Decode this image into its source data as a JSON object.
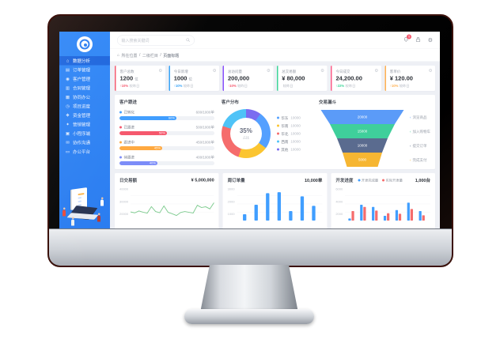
{
  "topbar": {
    "search_placeholder": "输入搜索关键词",
    "bell_badge": "5",
    "gear_glyph": "⚙"
  },
  "breadcrumb": {
    "home_glyph": "⌂",
    "home": "所在位置",
    "divider1": "/",
    "section": "二级栏目",
    "divider2": "/",
    "page": "页面标题"
  },
  "sidebar": {
    "items": [
      {
        "glyph": "⌂",
        "label": "数据分析"
      },
      {
        "glyph": "▤",
        "label": "订单管理"
      },
      {
        "glyph": "◉",
        "label": "客户管理"
      },
      {
        "glyph": "▥",
        "label": "合同管理"
      },
      {
        "glyph": "▦",
        "label": "协同办公"
      },
      {
        "glyph": "◷",
        "label": "项目进度"
      },
      {
        "glyph": "❖",
        "label": "资金管理"
      },
      {
        "glyph": "✦",
        "label": "营销管理"
      },
      {
        "glyph": "▣",
        "label": "小程序端"
      },
      {
        "glyph": "✉",
        "label": "协作沟通"
      },
      {
        "glyph": "▭",
        "label": "办公平台"
      }
    ]
  },
  "cards": [
    {
      "accent": "#f5576c",
      "label": "客户总数",
      "value": "1200",
      "unit": "位",
      "delta": "↑10%",
      "delta_color": "#f5576c",
      "note": "较昨日"
    },
    {
      "accent": "#36a3f7",
      "label": "今日新增",
      "value": "1000",
      "unit": "位",
      "delta": "↑10%",
      "delta_color": "#36a3f7",
      "note": "较昨日"
    },
    {
      "accent": "#8950fc",
      "label": "总访问量",
      "value": "200,000",
      "unit": "",
      "delta": "↑10%",
      "delta_color": "#f5576c",
      "note": "较昨日"
    },
    {
      "accent": "#3dd598",
      "label": "总交易额",
      "value": "¥ 80,000",
      "unit": "",
      "delta": "",
      "delta_color": "#9aa0ab",
      "note": "较昨日"
    },
    {
      "accent": "#fd5c87",
      "label": "今日成交",
      "value": "24,200.00",
      "unit": "",
      "delta": "↑22%",
      "delta_color": "#3dd598",
      "note": "较昨日"
    },
    {
      "accent": "#ffb153",
      "label": "客单价",
      "value": "¥ 120.00",
      "unit": "",
      "delta": "↑10%",
      "delta_color": "#ffb153",
      "note": "较昨日"
    }
  ],
  "follow": {
    "title": "客户跟进",
    "rows": [
      {
        "color": "#409eff",
        "label": "已转化",
        "value": "600/1000单",
        "pct": 60
      },
      {
        "color": "#f5576c",
        "label": "已跟进",
        "value": "500/1000单",
        "pct": 50
      },
      {
        "color": "#ffa940",
        "label": "跟进中",
        "value": "450/1000单",
        "pct": 45
      },
      {
        "color": "#7c8cf8",
        "label": "待跟进",
        "value": "400/1000单",
        "pct": 40
      }
    ]
  },
  "donut": {
    "title": "客户分布",
    "center_value": "35%",
    "center_label": "占比",
    "segments": [
      {
        "label": "华东",
        "value": "10000",
        "color": "#54a0ff",
        "pct": 25
      },
      {
        "label": "华南",
        "value": "10000",
        "color": "#fbc531",
        "pct": 20
      },
      {
        "label": "华北",
        "value": "10000",
        "color": "#f56c6c",
        "pct": 25
      },
      {
        "label": "西南",
        "value": "10000",
        "color": "#4fc3f7",
        "pct": 20
      },
      {
        "label": "其他",
        "value": "10000",
        "color": "#7b6cf0",
        "pct": 10
      }
    ],
    "wheel_order": [
      4,
      0,
      1,
      2,
      3
    ]
  },
  "funnel": {
    "title": "交易漏斗",
    "steps": [
      {
        "color": "#5b9bf8",
        "value": "20000",
        "label": "浏览商品"
      },
      {
        "color": "#3fcf9b",
        "value": "15000",
        "label": "加入购物车"
      },
      {
        "color": "#5a6b8f",
        "value": "10000",
        "label": "提交订单"
      },
      {
        "color": "#f6b632",
        "value": "5000",
        "label": "完成支付"
      }
    ]
  },
  "chart_data": [
    {
      "type": "line",
      "title": "日交易额",
      "total": "¥ 5,000,000",
      "yticks": [
        "40000",
        "30000",
        "20000"
      ],
      "ymin": 20000,
      "ymax": 45000,
      "color": "#7ecb8f",
      "values": [
        26500,
        25800,
        27200,
        26300,
        25600,
        30500,
        26800,
        25900,
        31000,
        26200,
        25100,
        23800,
        26100,
        26800,
        26200,
        25700,
        31500,
        29800,
        30400,
        28800,
        33500
      ]
    },
    {
      "type": "bar",
      "title": "周订单量",
      "total": "10,000单",
      "yticks": [
        "3000",
        "2000",
        "1000"
      ],
      "ymax": 3000,
      "color": "#409eff",
      "values": [
        600,
        1500,
        2600,
        2700,
        900,
        2300,
        1400
      ]
    },
    {
      "type": "grouped-bar",
      "title": "开发进度",
      "total": "1,000台",
      "yticks": [
        "6000",
        "4000",
        "2000"
      ],
      "ymax": 6000,
      "series": [
        {
          "label": "开发完成量",
          "color": "#409eff"
        },
        {
          "label": "实际开发量",
          "color": "#f56c6c"
        }
      ],
      "groups": [
        [
          400,
          1800
        ],
        [
          3000,
          2600
        ],
        [
          2600,
          1900
        ],
        [
          900,
          1400
        ],
        [
          2000,
          1300
        ],
        [
          3400,
          2200
        ],
        [
          1800,
          1000
        ]
      ]
    }
  ]
}
